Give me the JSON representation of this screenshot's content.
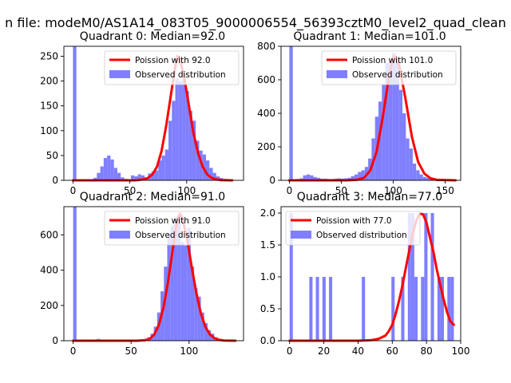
{
  "figure_title": "n file: modeM0/AS1A14_083T05_9000006554_56393cztM0_level2_quad_clean",
  "colors": {
    "hist": "#7f7fff",
    "line": "#ff0000",
    "axes": "#000000"
  },
  "chart_data": [
    {
      "type": "bar",
      "title": "Quadrant 0: Median=92.0",
      "xlim": [
        -8,
        150
      ],
      "ylim": [
        0,
        270
      ],
      "xticks": [
        0,
        50,
        100
      ],
      "yticks": [
        0,
        50,
        100,
        150,
        200,
        250
      ],
      "bin_width": 3.0,
      "hist": {
        "x": [
          0,
          3,
          6,
          9,
          12,
          15,
          18,
          21,
          24,
          27,
          30,
          33,
          36,
          39,
          42,
          45,
          48,
          51,
          54,
          57,
          60,
          63,
          66,
          69,
          72,
          75,
          78,
          81,
          84,
          87,
          90,
          93,
          96,
          99,
          102,
          105,
          108,
          111,
          114,
          117,
          120,
          123,
          126,
          129,
          132,
          135,
          138
        ],
        "values": [
          270,
          0,
          0,
          0,
          0,
          2,
          5,
          15,
          28,
          45,
          50,
          42,
          25,
          15,
          6,
          3,
          2,
          10,
          8,
          12,
          10,
          6,
          14,
          18,
          20,
          40,
          50,
          62,
          120,
          160,
          205,
          200,
          205,
          180,
          140,
          120,
          80,
          60,
          52,
          40,
          25,
          15,
          8,
          5,
          3,
          2,
          1
        ]
      },
      "line": {
        "label": "Poission with 92.0",
        "x": [
          0,
          20,
          40,
          55,
          62,
          66,
          70,
          74,
          78,
          82,
          86,
          90,
          92,
          94,
          98,
          102,
          106,
          110,
          114,
          118,
          122,
          126,
          130,
          140
        ],
        "y": [
          0,
          0,
          0,
          0,
          2,
          5,
          12,
          28,
          60,
          110,
          170,
          230,
          250,
          245,
          205,
          150,
          95,
          55,
          28,
          12,
          5,
          2,
          0.5,
          0
        ]
      },
      "legend": {
        "hist_label": "Observed distribution",
        "position": "upper right"
      }
    },
    {
      "type": "bar",
      "title": "Quadrant 1: Median=101.0",
      "xlim": [
        -8,
        165
      ],
      "ylim": [
        0,
        800
      ],
      "xticks": [
        0,
        50,
        100,
        150
      ],
      "yticks": [
        0,
        200,
        400,
        600,
        800
      ],
      "bin_width": 3.3,
      "hist": {
        "x": [
          0,
          3.3,
          6.6,
          9.9,
          13.2,
          16.5,
          19.8,
          23.1,
          26.4,
          29.7,
          33,
          36.3,
          39.6,
          42.9,
          46.2,
          49.5,
          52.8,
          56.1,
          59.4,
          62.7,
          66,
          69.3,
          72.6,
          75.9,
          79.2,
          82.5,
          85.8,
          89.1,
          92.4,
          95.7,
          99,
          102.3,
          105.6,
          108.9,
          112.2,
          115.5,
          118.8,
          122.1,
          125.4,
          128.7,
          132,
          135.3,
          138.6,
          141.9,
          145.2,
          148.5,
          151.8
        ],
        "values": [
          800,
          5,
          8,
          12,
          30,
          35,
          30,
          20,
          15,
          10,
          10,
          8,
          8,
          10,
          12,
          10,
          12,
          15,
          25,
          35,
          50,
          60,
          80,
          130,
          250,
          380,
          470,
          570,
          700,
          720,
          760,
          700,
          540,
          400,
          250,
          190,
          100,
          60,
          35,
          20,
          15,
          10,
          8,
          5,
          3,
          2,
          1
        ]
      },
      "line": {
        "label": "Poission with 101.0",
        "x": [
          0,
          30,
          55,
          65,
          72,
          78,
          84,
          90,
          96,
          100,
          102,
          106,
          112,
          118,
          124,
          130,
          136,
          142,
          160
        ],
        "y": [
          0,
          0,
          0,
          3,
          15,
          60,
          170,
          380,
          620,
          735,
          740,
          680,
          480,
          260,
          110,
          40,
          12,
          3,
          0
        ]
      },
      "legend": {
        "hist_label": "Observed distribution",
        "position": "upper right"
      }
    },
    {
      "type": "bar",
      "title": "Quadrant 2: Median=91.0",
      "xlim": [
        -8,
        147
      ],
      "ylim": [
        0,
        760
      ],
      "xticks": [
        0,
        50,
        100
      ],
      "yticks": [
        0,
        200,
        400,
        600
      ],
      "bin_width": 2.9,
      "hist": {
        "x": [
          0,
          2.9,
          5.8,
          8.7,
          11.6,
          14.5,
          17.4,
          20.3,
          23.2,
          26.1,
          29,
          31.9,
          34.8,
          37.7,
          40.6,
          43.5,
          46.4,
          49.3,
          52.2,
          55.1,
          58,
          60.9,
          63.8,
          66.7,
          69.6,
          72.5,
          75.4,
          78.3,
          81.2,
          84.1,
          87,
          89.9,
          92.8,
          95.7,
          98.6,
          101.5,
          104.4,
          107.3,
          110.2,
          113.1,
          116,
          118.9,
          121.8,
          124.7,
          127.6,
          130.5
        ],
        "values": [
          760,
          0,
          0,
          0,
          0,
          0,
          3,
          10,
          2,
          0,
          0,
          2,
          1,
          0,
          0,
          2,
          2,
          3,
          5,
          5,
          8,
          10,
          20,
          40,
          80,
          160,
          280,
          420,
          600,
          650,
          700,
          700,
          560,
          540,
          640,
          420,
          300,
          250,
          160,
          100,
          60,
          40,
          20,
          10,
          5,
          2
        ]
      },
      "line": {
        "label": "Poission with 91.0",
        "x": [
          0,
          20,
          40,
          55,
          62,
          66,
          70,
          74,
          78,
          82,
          86,
          90,
          92,
          94,
          98,
          102,
          106,
          110,
          114,
          118,
          122,
          126,
          130,
          140
        ],
        "y": [
          0,
          0,
          0,
          0,
          3,
          10,
          35,
          90,
          190,
          340,
          520,
          690,
          720,
          700,
          590,
          430,
          280,
          160,
          80,
          35,
          14,
          5,
          1,
          0
        ]
      },
      "legend": {
        "hist_label": "Observed distribution",
        "position": "upper right"
      }
    },
    {
      "type": "bar",
      "title": "Quadrant 3: Median=77.0",
      "xlim": [
        -5,
        100
      ],
      "ylim": [
        0,
        2.1
      ],
      "xticks": [
        0,
        20,
        40,
        60,
        80,
        100
      ],
      "yticks": [
        0.0,
        0.5,
        1.0,
        1.5,
        2.0
      ],
      "bin_width": 1.9,
      "hist": {
        "x": [
          0,
          11.5,
          15.3,
          19.2,
          23,
          42.2,
          59.5,
          65.2,
          69.1,
          71,
          72.9,
          76.8,
          78.7,
          82.5,
          86.4,
          88.3,
          92.2,
          94.1
        ],
        "values": [
          2,
          1,
          1,
          1,
          1,
          1,
          1,
          1,
          2,
          2,
          1,
          1,
          2,
          2,
          1,
          1,
          1,
          1
        ]
      },
      "line": {
        "label": "Poission with 77.0",
        "x": [
          0,
          10,
          20,
          30,
          40,
          48,
          52,
          56,
          58,
          60,
          62,
          64,
          66,
          68,
          70,
          72,
          74,
          76,
          78,
          80,
          82,
          84,
          86,
          88,
          90,
          92,
          94,
          96
        ],
        "y": [
          0,
          0,
          0,
          0,
          0,
          0.01,
          0.03,
          0.08,
          0.15,
          0.25,
          0.42,
          0.63,
          0.87,
          1.15,
          1.42,
          1.68,
          1.88,
          1.99,
          1.98,
          1.85,
          1.62,
          1.4,
          1.12,
          0.88,
          0.65,
          0.45,
          0.3,
          0.25
        ]
      },
      "legend": {
        "hist_label": "Observed distribution",
        "position": "upper left"
      }
    }
  ]
}
